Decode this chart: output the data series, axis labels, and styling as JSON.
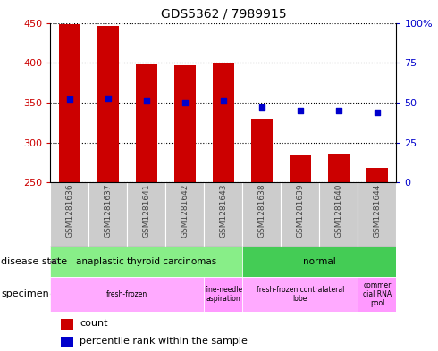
{
  "title": "GDS5362 / 7989915",
  "samples": [
    "GSM1281636",
    "GSM1281637",
    "GSM1281641",
    "GSM1281642",
    "GSM1281643",
    "GSM1281638",
    "GSM1281639",
    "GSM1281640",
    "GSM1281644"
  ],
  "counts": [
    448,
    446,
    398,
    397,
    400,
    330,
    285,
    286,
    268
  ],
  "percentile_ranks": [
    52,
    53,
    51,
    50,
    51,
    47,
    45,
    45,
    44
  ],
  "ylim_left": [
    250,
    450
  ],
  "ylim_right": [
    0,
    100
  ],
  "yticks_left": [
    250,
    300,
    350,
    400,
    450
  ],
  "yticks_right": [
    0,
    25,
    50,
    75,
    100
  ],
  "bar_color": "#cc0000",
  "dot_color": "#0000cc",
  "disease_state_groups": [
    {
      "label": "anaplastic thyroid carcinomas",
      "start": 0,
      "end": 4,
      "color": "#88ee88"
    },
    {
      "label": "normal",
      "start": 5,
      "end": 8,
      "color": "#44cc55"
    }
  ],
  "specimen_groups": [
    {
      "label": "fresh-frozen",
      "start": 0,
      "end": 3,
      "color": "#ffaaff"
    },
    {
      "label": "fine-needle\naspiration",
      "start": 4,
      "end": 4,
      "color": "#ff99ff"
    },
    {
      "label": "fresh-frozen contralateral\nlobe",
      "start": 5,
      "end": 7,
      "color": "#ffaaff"
    },
    {
      "label": "commer\ncial RNA\npool",
      "start": 8,
      "end": 8,
      "color": "#ff99ff"
    }
  ],
  "legend_count_label": "count",
  "legend_pct_label": "percentile rank within the sample",
  "bar_color_hex": "#cc0000",
  "dot_color_hex": "#0000cc",
  "left_tick_color": "#cc0000",
  "right_tick_color": "#0000cc",
  "gray_col_color": "#cccccc",
  "tick_fontsize": 8,
  "sample_label_fontsize": 6.5,
  "annotation_fontsize": 7.5,
  "title_fontsize": 10
}
